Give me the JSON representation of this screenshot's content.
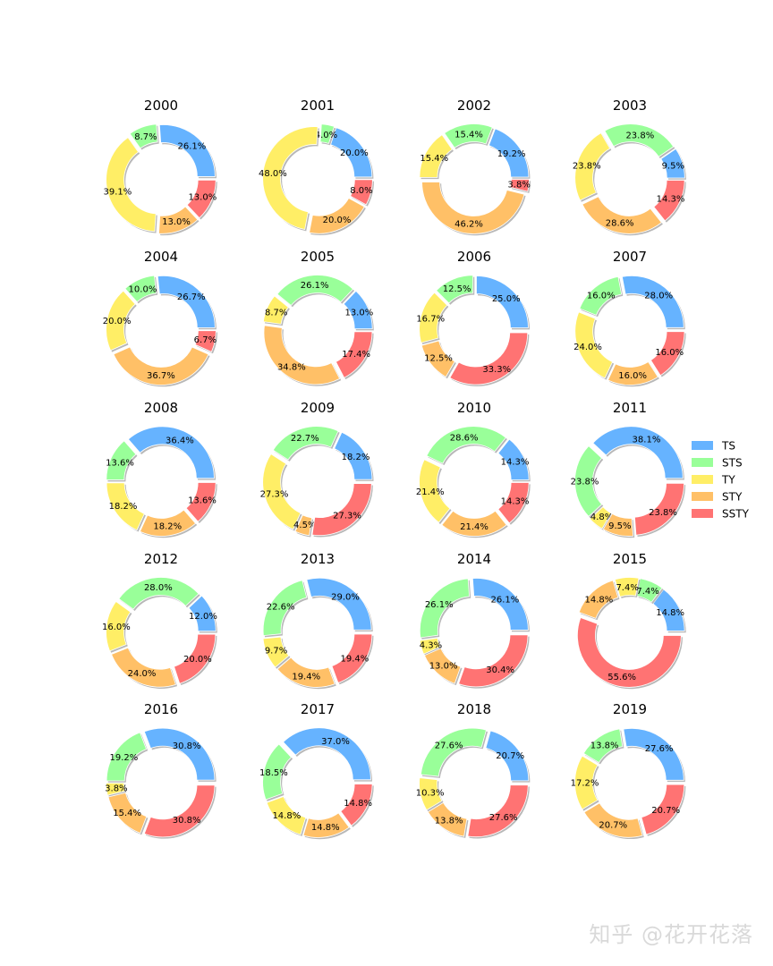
{
  "chart_data": {
    "type": "donut",
    "legend_placement": "right",
    "categories": [
      "TS",
      "STS",
      "TY",
      "STY",
      "SSTY"
    ],
    "colors": [
      "#66b3ff",
      "#99ff99",
      "#ffee66",
      "#ffc067",
      "#ff7373"
    ],
    "charts": [
      {
        "title": "2000",
        "values": [
          26.1,
          8.7,
          39.1,
          13.0,
          13.0
        ]
      },
      {
        "title": "2001",
        "values": [
          20.0,
          4.0,
          48.0,
          20.0,
          8.0
        ]
      },
      {
        "title": "2002",
        "values": [
          19.2,
          15.4,
          15.4,
          46.2,
          3.8
        ]
      },
      {
        "title": "2003",
        "values": [
          9.5,
          23.8,
          23.8,
          28.6,
          14.3
        ]
      },
      {
        "title": "2004",
        "values": [
          26.7,
          10.0,
          20.0,
          36.7,
          6.7
        ]
      },
      {
        "title": "2005",
        "values": [
          13.0,
          26.1,
          8.7,
          34.8,
          17.4
        ]
      },
      {
        "title": "2006",
        "values": [
          25.0,
          12.5,
          16.7,
          12.5,
          33.3
        ]
      },
      {
        "title": "2007",
        "values": [
          28.0,
          16.0,
          24.0,
          16.0,
          16.0
        ]
      },
      {
        "title": "2008",
        "values": [
          36.4,
          13.6,
          18.2,
          18.2,
          13.6
        ]
      },
      {
        "title": "2009",
        "values": [
          18.2,
          22.7,
          27.3,
          4.5,
          27.3
        ]
      },
      {
        "title": "2010",
        "values": [
          14.3,
          28.6,
          21.4,
          21.4,
          14.3
        ]
      },
      {
        "title": "2011",
        "values": [
          38.1,
          23.8,
          4.8,
          9.5,
          23.8
        ]
      },
      {
        "title": "2012",
        "values": [
          12.0,
          28.0,
          16.0,
          24.0,
          20.0
        ]
      },
      {
        "title": "2013",
        "values": [
          29.0,
          22.6,
          9.7,
          19.4,
          19.4
        ]
      },
      {
        "title": "2014",
        "values": [
          26.1,
          26.1,
          4.3,
          13.0,
          30.4
        ]
      },
      {
        "title": "2015",
        "values": [
          14.8,
          7.4,
          7.4,
          14.8,
          55.6
        ]
      },
      {
        "title": "2016",
        "values": [
          30.8,
          19.2,
          3.8,
          15.4,
          30.8
        ]
      },
      {
        "title": "2017",
        "values": [
          37.0,
          18.5,
          14.8,
          14.8,
          14.8
        ]
      },
      {
        "title": "2018",
        "values": [
          20.7,
          27.6,
          10.3,
          13.8,
          27.6
        ]
      },
      {
        "title": "2019",
        "values": [
          27.6,
          13.8,
          17.2,
          20.7,
          20.7
        ]
      }
    ]
  },
  "watermark": "知乎 @花开花落"
}
